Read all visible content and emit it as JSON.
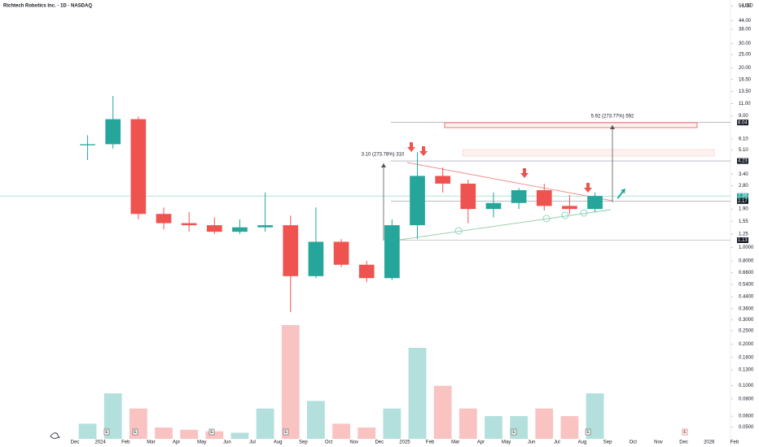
{
  "chart_data": {
    "type": "candlestick",
    "title": "Richtech Robotics Inc. · 1D · NASDAQ",
    "currency": "USD",
    "log_scale": true,
    "up_color": "#26a69a",
    "down_color": "#ef5350",
    "categories": [
      "Dec",
      "2024",
      "Feb",
      "Mar",
      "Apr",
      "May",
      "Jun",
      "Jul",
      "Aug",
      "Sep",
      "Oct",
      "Nov",
      "Dec",
      "2025",
      "Feb",
      "Mar",
      "Apr",
      "May",
      "Jun",
      "Jul",
      "Aug",
      "Sep",
      "Oct",
      "Nov",
      "Dec",
      "2026",
      "Feb"
    ],
    "open": [
      5.5,
      5.6,
      8.5,
      1.75,
      1.5,
      1.45,
      1.3,
      1.4,
      1.45,
      0.62,
      1.1,
      0.75,
      0.6,
      1.45,
      3.3,
      2.9,
      1.9,
      2.1,
      2.6,
      2.0,
      1.9,
      null,
      null,
      null,
      null,
      null,
      null
    ],
    "high": [
      6.5,
      12.5,
      8.9,
      1.95,
      1.8,
      1.65,
      1.6,
      2.5,
      1.7,
      1.95,
      1.15,
      0.8,
      1.6,
      4.9,
      3.8,
      3.1,
      2.5,
      2.7,
      2.9,
      2.4,
      2.5,
      null,
      null,
      null,
      null,
      null,
      null
    ],
    "low": [
      4.3,
      5.2,
      1.6,
      1.35,
      1.3,
      1.25,
      1.25,
      1.3,
      0.34,
      0.6,
      0.72,
      0.56,
      0.58,
      1.15,
      2.5,
      1.5,
      1.65,
      1.9,
      1.85,
      1.75,
      1.8,
      null,
      null,
      null,
      null,
      null,
      null
    ],
    "close": [
      5.6,
      8.5,
      1.75,
      1.5,
      1.45,
      1.3,
      1.4,
      1.45,
      0.62,
      1.1,
      0.75,
      0.6,
      1.45,
      3.3,
      2.9,
      1.9,
      2.1,
      2.6,
      2.0,
      1.9,
      2.36,
      null,
      null,
      null,
      null,
      null,
      null
    ],
    "volume": [
      20,
      60,
      40,
      15,
      12,
      10,
      8,
      40,
      150,
      50,
      20,
      15,
      40,
      120,
      70,
      40,
      30,
      30,
      40,
      30,
      60,
      null,
      null,
      null,
      null,
      null,
      null
    ],
    "ylim": [
      0.044,
      62
    ],
    "yticks": [
      {
        "value": 56,
        "label": "56.00"
      },
      {
        "value": 44,
        "label": "44.00"
      },
      {
        "value": 38,
        "label": "38.00"
      },
      {
        "value": 30,
        "label": "30.00"
      },
      {
        "value": 25,
        "label": "25.00"
      },
      {
        "value": 20,
        "label": "20.00"
      },
      {
        "value": 16.5,
        "label": "16.50"
      },
      {
        "value": 13.5,
        "label": "13.50"
      },
      {
        "value": 11,
        "label": "11.00"
      },
      {
        "value": 9,
        "label": "9.00"
      },
      {
        "value": 6.1,
        "label": "6.10"
      },
      {
        "value": 5.1,
        "label": "5.10"
      },
      {
        "value": 3.4,
        "label": "3.40"
      },
      {
        "value": 2.8,
        "label": "2.80"
      },
      {
        "value": 1.9,
        "label": "1.90"
      },
      {
        "value": 1.55,
        "label": "1.55"
      },
      {
        "value": 1.25,
        "label": "1.25"
      },
      {
        "value": 1,
        "label": "1.0000"
      },
      {
        "value": 0.8,
        "label": "0.8000"
      },
      {
        "value": 0.66,
        "label": "0.6600"
      },
      {
        "value": 0.54,
        "label": "0.5400"
      },
      {
        "value": 0.44,
        "label": "0.4400"
      },
      {
        "value": 0.36,
        "label": "0.3600"
      },
      {
        "value": 0.3,
        "label": "0.3000"
      },
      {
        "value": 0.25,
        "label": "0.2500"
      },
      {
        "value": 0.2,
        "label": "0.2000"
      },
      {
        "value": 0.16,
        "label": "0.1600"
      },
      {
        "value": 0.13,
        "label": "0.1300"
      },
      {
        "value": 0.1,
        "label": "0.1000"
      },
      {
        "value": 0.08,
        "label": "0.0800"
      },
      {
        "value": 0.06,
        "label": "0.0600"
      },
      {
        "value": 0.05,
        "label": "0.0500"
      }
    ],
    "price_labels": [
      {
        "value": 8.04,
        "label": "8.04",
        "color": "#131722"
      },
      {
        "value": 4.23,
        "label": "4.23",
        "color": "#131722"
      },
      {
        "value": 2.36,
        "label": "2.36",
        "color": "#26a69a"
      },
      {
        "value": 2.17,
        "label": "2.17",
        "color": "#131722"
      },
      {
        "value": 1.13,
        "label": "1.13",
        "color": "#131722"
      }
    ],
    "annotations": [
      "5.92 (273.77%) 592",
      "3.10 (273.78%) 310"
    ],
    "earnings_marker": "E"
  }
}
